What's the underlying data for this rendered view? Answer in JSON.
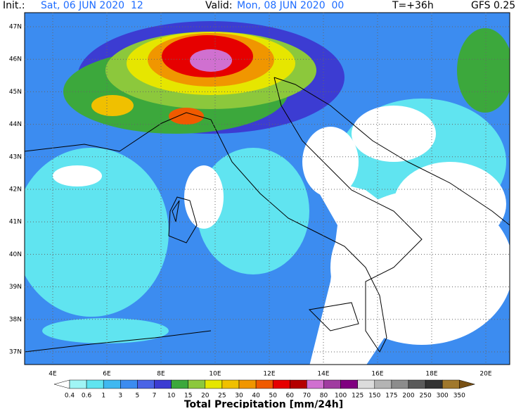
{
  "header": {
    "init_label": "Init.:",
    "init_time": "Sat, 06 JUN 2020  12",
    "valid_label": "Valid:",
    "valid_time": "Mon, 08 JUN 2020  00",
    "lead": "T=+36h",
    "model": "GFS 0.25"
  },
  "map": {
    "lat_labels": [
      "47N",
      "46N",
      "45N",
      "44N",
      "43N",
      "42N",
      "41N",
      "40N",
      "39N",
      "38N",
      "37N"
    ],
    "lon_labels": [
      "4E",
      "6E",
      "8E",
      "10E",
      "12E",
      "14E",
      "16E",
      "18E",
      "20E"
    ]
  },
  "colorbar": {
    "title": "Total Precipitation [mm/24h]",
    "labels": [
      "0.4",
      "0.6",
      "1",
      "3",
      "5",
      "7",
      "10",
      "15",
      "20",
      "25",
      "30",
      "40",
      "50",
      "60",
      "70",
      "80",
      "100",
      "125",
      "150",
      "175",
      "200",
      "250",
      "300",
      "350"
    ],
    "colors": [
      "#ffffff",
      "#a0f5f5",
      "#60e4f0",
      "#40b8f0",
      "#3c8cf0",
      "#4a64e6",
      "#3c3cd2",
      "#3ca83c",
      "#8cc83c",
      "#e6e600",
      "#f0c000",
      "#f09600",
      "#f05a00",
      "#e60000",
      "#b40000",
      "#d070d0",
      "#a03ca0",
      "#800080",
      "#dcdcdc",
      "#b4b4b4",
      "#8c8c8c",
      "#5a5a5a",
      "#323232",
      "#a0782c",
      "#785014"
    ]
  }
}
